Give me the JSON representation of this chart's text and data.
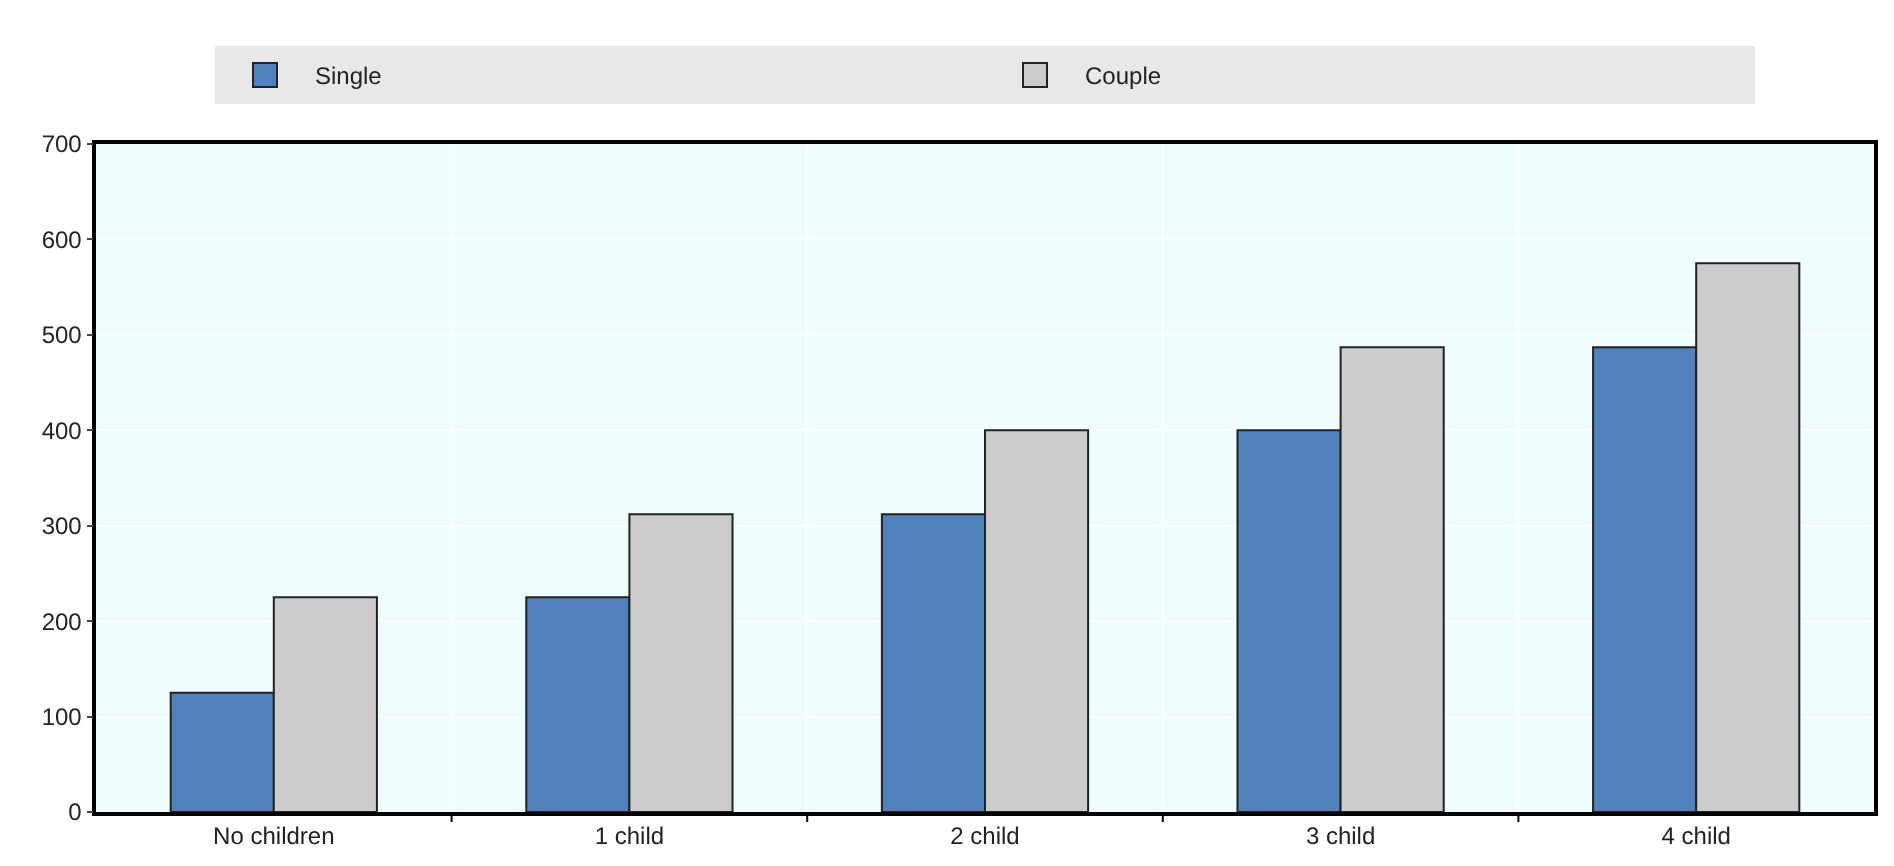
{
  "chart_data": {
    "type": "bar",
    "categories": [
      "No children",
      "1 child",
      "2 child",
      "3 child",
      "4 child"
    ],
    "series": [
      {
        "name": "Single",
        "color": "#4f81bd",
        "values": [
          125,
          225,
          312,
          400,
          487
        ]
      },
      {
        "name": "Couple",
        "color": "#cccccc",
        "values": [
          225,
          312,
          400,
          487,
          575
        ]
      }
    ],
    "ylim": [
      0,
      700
    ],
    "yticks": [
      0,
      100,
      200,
      300,
      400,
      500,
      600,
      700
    ],
    "grid": true,
    "legend": "top"
  }
}
